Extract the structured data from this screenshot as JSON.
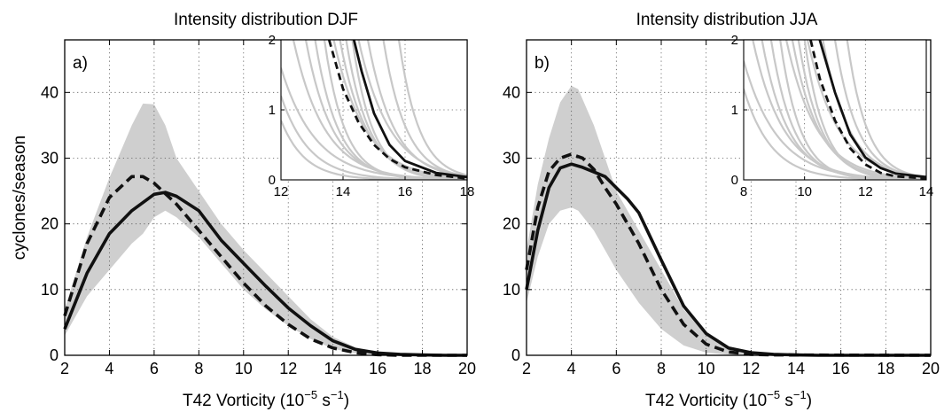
{
  "chart_data": [
    {
      "type": "line",
      "title": "Intensity distribution DJF",
      "panel_label": "a)",
      "xlabel_prefix": "T42 Vorticity (10",
      "xlabel_exp1": "−5",
      "xlabel_mid": " s",
      "xlabel_exp2": "−1",
      "xlabel_suffix": ")",
      "ylabel": "cyclones/season",
      "xlim": [
        2,
        20
      ],
      "ylim": [
        0,
        48
      ],
      "xticks": [
        "2",
        "4",
        "6",
        "8",
        "10",
        "12",
        "14",
        "16",
        "18",
        "20"
      ],
      "yticks": [
        "0",
        "10",
        "20",
        "30",
        "40"
      ],
      "grid": true,
      "colors": {
        "band": "#cfcfcf",
        "line": "#111111",
        "member": "#c8c8c8"
      },
      "band": {
        "x": [
          2,
          3,
          4,
          5,
          5.5,
          6,
          6.5,
          7,
          8,
          9,
          10,
          11,
          12,
          13,
          14,
          15,
          16,
          17,
          18,
          20
        ],
        "upper": [
          7,
          18,
          27,
          35,
          38.3,
          38.2,
          35,
          30,
          25,
          20,
          16,
          12.5,
          9,
          5.5,
          2.8,
          1.2,
          0.5,
          0.2,
          0.1,
          0
        ],
        "lower": [
          3,
          9,
          13,
          17,
          18.5,
          21,
          22,
          21,
          18,
          14,
          10,
          7,
          4.5,
          2.5,
          1,
          0.3,
          0.1,
          0,
          0,
          0
        ]
      },
      "series": [
        {
          "style": "solid",
          "x": [
            2,
            3,
            4,
            5,
            6,
            6.5,
            7,
            8,
            9,
            10,
            11,
            12,
            13,
            14,
            15,
            16,
            17,
            18,
            19,
            20
          ],
          "values": [
            4,
            12.5,
            18.5,
            22,
            24.5,
            24.8,
            24.2,
            22,
            17.5,
            14,
            10.5,
            7.2,
            4.5,
            2.2,
            0.9,
            0.35,
            0.15,
            0.05,
            0,
            0
          ]
        },
        {
          "style": "dashed",
          "x": [
            2,
            3,
            4,
            5,
            5.5,
            6,
            7,
            8,
            9,
            10,
            11,
            12,
            13,
            14,
            15,
            16,
            17,
            18,
            20
          ],
          "values": [
            6,
            17,
            24,
            27.2,
            27.2,
            26.2,
            23,
            19,
            15,
            11,
            7.5,
            4.7,
            2.5,
            1.1,
            0.4,
            0.1,
            0,
            0,
            0
          ]
        }
      ],
      "inset": {
        "xlim": [
          12,
          18
        ],
        "ylim": [
          0,
          2
        ],
        "xticks": [
          "12",
          "14",
          "16",
          "18"
        ],
        "yticks": [
          "0",
          "1",
          "2"
        ],
        "solid": {
          "x": [
            14.35,
            14.6,
            15,
            15.5,
            16,
            17,
            18
          ],
          "values": [
            2,
            1.55,
            0.95,
            0.5,
            0.27,
            0.1,
            0.04
          ]
        },
        "dashed": {
          "x": [
            13.55,
            14,
            14.5,
            15,
            15.5,
            16,
            17,
            18
          ],
          "values": [
            2,
            1.3,
            0.82,
            0.5,
            0.3,
            0.18,
            0.07,
            0.02
          ]
        },
        "members_crossing_top": [
          12.4,
          12.8,
          13.1,
          13.4,
          13.7,
          13.9,
          14.1,
          14.3,
          14.5,
          14.8,
          15.3,
          15.8
        ],
        "members_left": [
          1.6,
          1.2,
          0.85
        ]
      }
    },
    {
      "type": "line",
      "title": "Intensity distribution JJA",
      "panel_label": "b)",
      "xlabel_prefix": "T42 Vorticity (10",
      "xlabel_exp1": "−5",
      "xlabel_mid": " s",
      "xlabel_exp2": "−1",
      "xlabel_suffix": ")",
      "ylabel": "",
      "xlim": [
        2,
        20
      ],
      "ylim": [
        0,
        48
      ],
      "xticks": [
        "2",
        "4",
        "6",
        "8",
        "10",
        "12",
        "14",
        "16",
        "18",
        "20"
      ],
      "yticks": [
        "0",
        "10",
        "20",
        "30",
        "40"
      ],
      "grid": true,
      "colors": {
        "band": "#cfcfcf",
        "line": "#111111",
        "member": "#c8c8c8"
      },
      "band": {
        "x": [
          2,
          2.5,
          3,
          3.5,
          4,
          4.3,
          5,
          6,
          7,
          8,
          9,
          10,
          11,
          12,
          13,
          14,
          20
        ],
        "upper": [
          16,
          26,
          33,
          38.5,
          41,
          40.5,
          35,
          25,
          19,
          13,
          7,
          3,
          1.2,
          0.5,
          0.2,
          0.1,
          0
        ],
        "lower": [
          8,
          15,
          20,
          22,
          22.5,
          22,
          19,
          13,
          8,
          4,
          1.5,
          0.4,
          0.1,
          0,
          0,
          0,
          0
        ]
      },
      "series": [
        {
          "style": "solid",
          "x": [
            2,
            2.5,
            3,
            3.5,
            4,
            4.5,
            5,
            5.5,
            6,
            6.5,
            7,
            8,
            9,
            10,
            11,
            12,
            13,
            14,
            15,
            20
          ],
          "values": [
            10,
            19,
            25.5,
            28.5,
            29.1,
            28.6,
            27.9,
            27.2,
            25.5,
            23.8,
            21.7,
            14.5,
            7.5,
            3.3,
            1.1,
            0.4,
            0.15,
            0.05,
            0,
            0
          ]
        },
        {
          "style": "dashed",
          "x": [
            2,
            2.5,
            3,
            3.5,
            4,
            4.5,
            5,
            5.5,
            6,
            7,
            8,
            9,
            10,
            11,
            12,
            13,
            20
          ],
          "values": [
            13,
            22.5,
            28,
            30,
            30.6,
            30,
            28.3,
            25.5,
            23,
            17,
            10,
            4.7,
            1.7,
            0.5,
            0.15,
            0.05,
            0
          ]
        }
      ],
      "inset": {
        "xlim": [
          8,
          14
        ],
        "ylim": [
          0,
          2
        ],
        "xticks": [
          "8",
          "10",
          "12",
          "14"
        ],
        "yticks": [
          "0",
          "1",
          "2"
        ],
        "solid": {
          "x": [
            10.5,
            11,
            11.5,
            12,
            12.5,
            13,
            14
          ],
          "values": [
            2,
            1.25,
            0.65,
            0.32,
            0.17,
            0.09,
            0.04
          ]
        },
        "dashed": {
          "x": [
            10.2,
            10.5,
            11,
            11.5,
            12,
            12.5,
            13,
            14
          ],
          "values": [
            2,
            1.45,
            0.85,
            0.45,
            0.22,
            0.1,
            0.05,
            0.02
          ]
        },
        "members_crossing_top": [
          8.3,
          8.6,
          8.9,
          9.2,
          9.4,
          9.6,
          9.8,
          10.0,
          10.1,
          10.6,
          11.0,
          11.4
        ],
        "members_left": [
          1.7,
          1.3
        ]
      }
    }
  ]
}
